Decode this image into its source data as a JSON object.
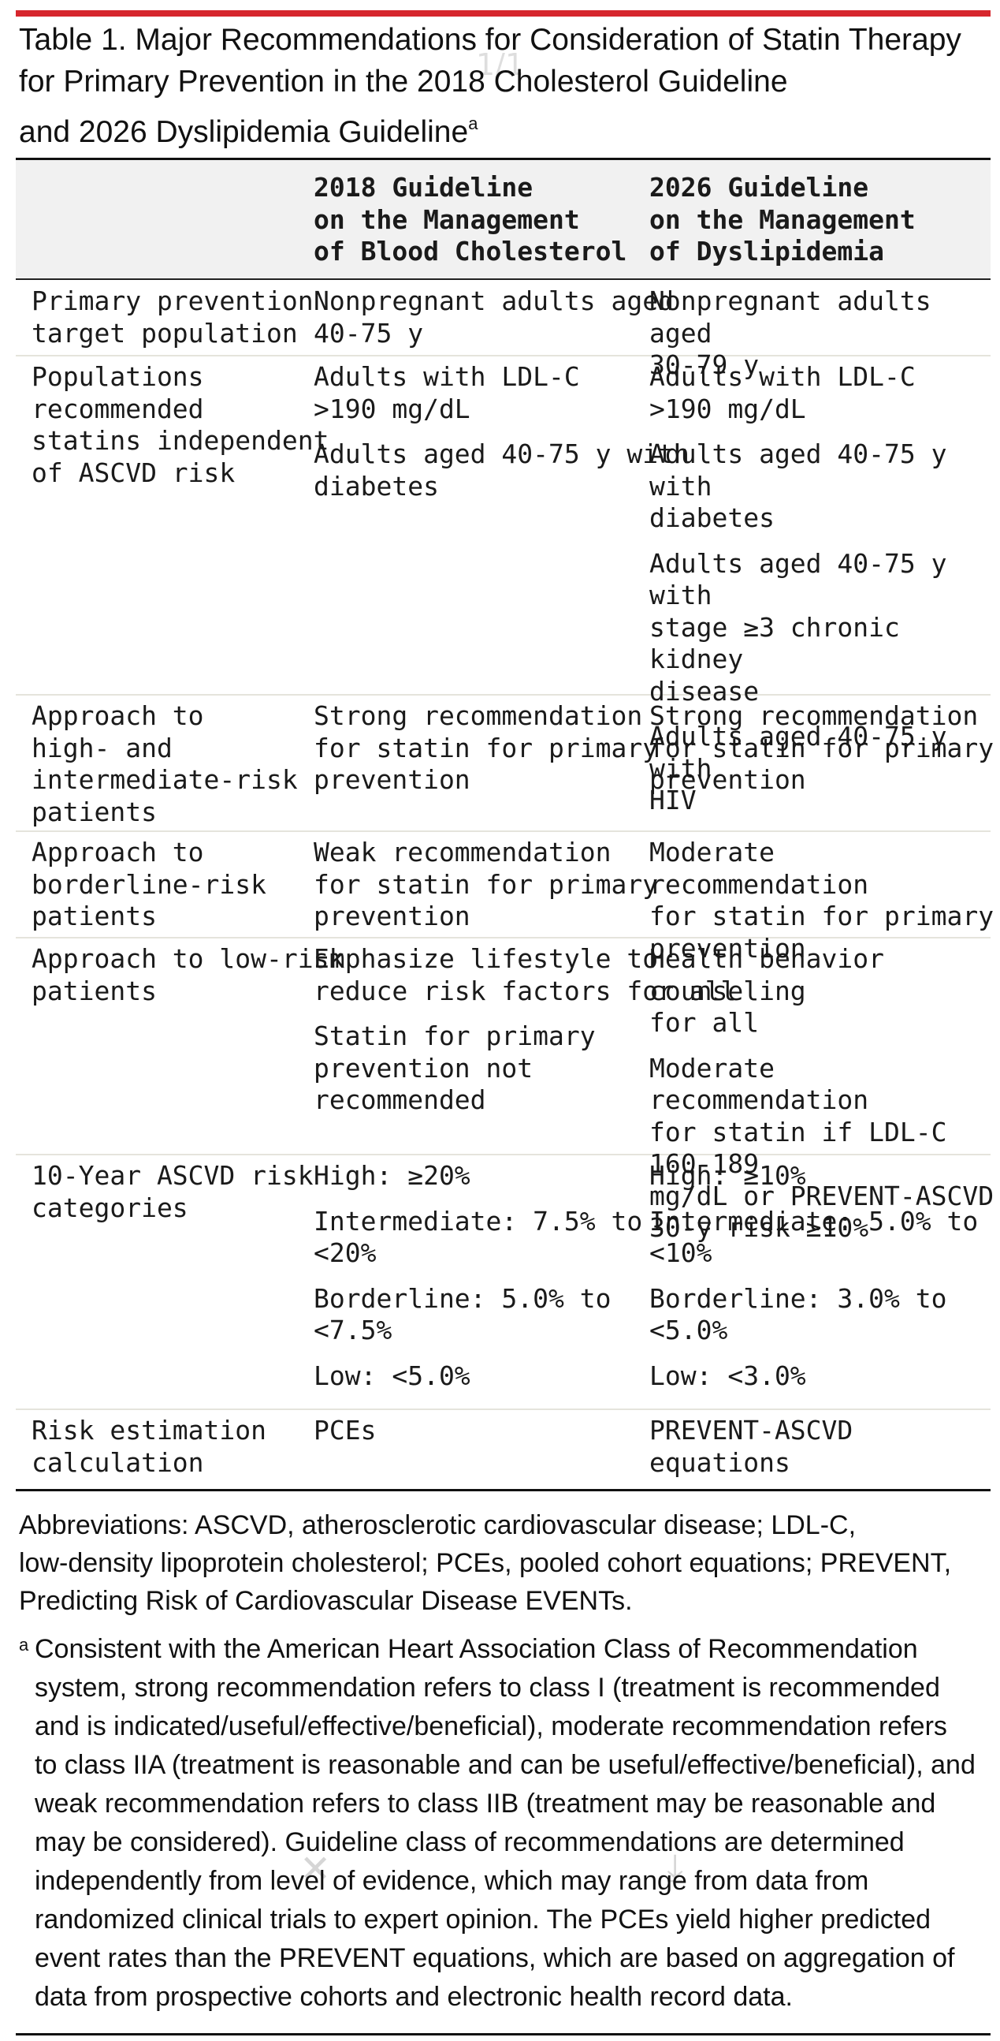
{
  "title": {
    "text": "Table 1. Major Recommendations for Consideration of Statin Therapy\nfor Primary Prevention in the 2018 Cholesterol Guideline\nand 2026 Dyslipidemia Guideline",
    "footnote_marker": "a"
  },
  "page_indicator": "1/1",
  "table": {
    "columns": [
      {
        "label": ""
      },
      {
        "label": "2018 Guideline\non the Management\nof Blood Cholesterol"
      },
      {
        "label": "2026 Guideline\non the Management\nof Dyslipidemia"
      }
    ],
    "rows": [
      {
        "label": "Primary prevention\ntarget population",
        "col2018": [
          "Nonpregnant adults aged\n40-75 y"
        ],
        "col2026": [
          "Nonpregnant adults aged\n30-79 y"
        ]
      },
      {
        "label": "Populations\nrecommended\nstatins independent\nof ASCVD risk",
        "col2018": [
          "Adults with LDL-C\n>190 mg/dL",
          "Adults aged 40-75 y with\ndiabetes"
        ],
        "col2026": [
          "Adults with LDL-C\n>190 mg/dL",
          "Adults aged 40-75 y with\ndiabetes",
          "Adults aged 40-75 y with\nstage ≥3 chronic kidney\ndisease",
          "Adults aged 40-75 y with\nHIV"
        ]
      },
      {
        "label": "Approach to\nhigh- and\nintermediate-risk\npatients",
        "col2018": [
          "Strong recommendation\nfor statin for primary\nprevention"
        ],
        "col2026": [
          "Strong recommendation\nfor statin for primary\nprevention"
        ]
      },
      {
        "label": "Approach to\nborderline-risk\npatients",
        "col2018": [
          "Weak recommendation\nfor statin for primary\nprevention"
        ],
        "col2026": [
          "Moderate recommendation\nfor statin for primary\nprevention"
        ]
      },
      {
        "label": "Approach to low-risk\npatients",
        "col2018": [
          "Emphasize lifestyle to\nreduce risk factors for all",
          "Statin for primary\nprevention not\nrecommended"
        ],
        "col2026": [
          "Health behavior counseling\nfor all",
          "Moderate recommendation\nfor statin if LDL-C 160-189\nmg/dL or PREVENT-ASCVD\n30-y risk ≥10%"
        ]
      },
      {
        "label": "10-Year ASCVD risk\ncategories",
        "col2018": [
          "High: ≥20%",
          "Intermediate: 7.5% to\n<20%",
          "Borderline: 5.0% to\n<7.5%",
          "Low: <5.0%"
        ],
        "col2026": [
          "High: ≥10%",
          "Intermediate: 5.0% to\n<10%",
          "Borderline: 3.0% to <5.0%",
          "Low: <3.0%"
        ]
      },
      {
        "label": "Risk estimation\ncalculation",
        "col2018": [
          "PCEs"
        ],
        "col2026": [
          "PREVENT-ASCVD equations"
        ]
      }
    ]
  },
  "abbreviations": "Abbreviations: ASCVD, atherosclerotic cardiovascular disease; LDL-C,\nlow-density lipoprotein cholesterol; PCEs, pooled cohort equations; PREVENT,\nPredicting Risk of Cardiovascular Disease EVENTs.",
  "footnote": {
    "marker": "a",
    "text": "Consistent with the American Heart Association Class of Recommendation\nsystem, strong recommendation refers to class I (treatment is recommended\nand is indicated/useful/effective/beneficial), moderate recommendation refers\nto class IIA (treatment is reasonable and can be useful/effective/beneficial), and\nweak recommendation refers to class IIB (treatment may be reasonable and\nmay be considered). Guideline class of recommendations are determined\nindependently from level of evidence, which may range from data from\nrandomized clinical trials to expert opinion. The PCEs yield higher predicted\nevent rates than the PREVENT equations, which are based on aggregation of\ndata from prospective cohorts and electronic health record data."
  },
  "icons": {
    "close": "close-icon",
    "download": "download-icon"
  }
}
